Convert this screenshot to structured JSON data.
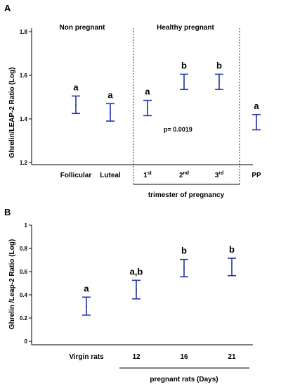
{
  "chart_data": [
    {
      "panel": "A",
      "type": "errorbar",
      "ylabel": "Ghrelin/LEAP-2 Ratio (Log)",
      "ylim": [
        1.2,
        1.8
      ],
      "yticks": [
        "1.2",
        "1.4",
        "1.6",
        "1.8"
      ],
      "categories": [
        "Follicular",
        "Luteal",
        "1",
        "2",
        "3",
        "PP"
      ],
      "category_sups": [
        "",
        "",
        "st",
        "nd",
        "rd",
        ""
      ],
      "groups": [
        {
          "mean": 1.465,
          "low": 1.425,
          "high": 1.505,
          "label": "a"
        },
        {
          "mean": 1.43,
          "low": 1.39,
          "high": 1.47,
          "label": "a"
        },
        {
          "mean": 1.45,
          "low": 1.415,
          "high": 1.485,
          "label": "a"
        },
        {
          "mean": 1.57,
          "low": 1.535,
          "high": 1.605,
          "label": "b"
        },
        {
          "mean": 1.57,
          "low": 1.535,
          "high": 1.605,
          "label": "b"
        },
        {
          "mean": 1.385,
          "low": 1.35,
          "high": 1.42,
          "label": "a"
        }
      ],
      "section_labels": [
        "Non pregnant",
        "Healthy pregnant"
      ],
      "annotation": "p= 0.0019",
      "xgroup_label": "trimester of pregnancy"
    },
    {
      "panel": "B",
      "type": "errorbar",
      "ylabel": "Ghrelin /Leap-2 Ratio (Log)",
      "ylim": [
        0,
        1
      ],
      "yticks": [
        "0",
        "0.2",
        "0.4",
        "0.6",
        "0.8",
        "1"
      ],
      "categories": [
        "Virgin rats",
        "12",
        "16",
        "21"
      ],
      "groups": [
        {
          "mean": 0.3,
          "low": 0.225,
          "high": 0.38,
          "label": "a"
        },
        {
          "mean": 0.445,
          "low": 0.365,
          "high": 0.525,
          "label": "a,b"
        },
        {
          "mean": 0.63,
          "low": 0.555,
          "high": 0.705,
          "label": "b"
        },
        {
          "mean": 0.64,
          "low": 0.565,
          "high": 0.715,
          "label": "b"
        }
      ],
      "xgroup_label": "pregnant rats (Days)"
    }
  ]
}
